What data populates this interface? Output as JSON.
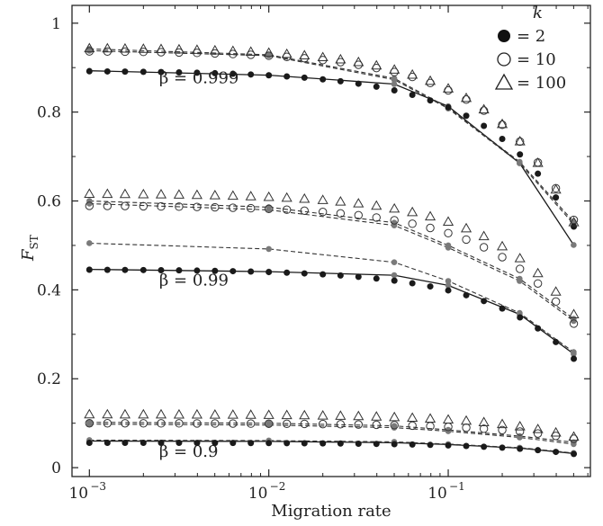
{
  "chart_data": {
    "type": "scatter",
    "xscale": "log",
    "xlim": [
      0.0008,
      0.62
    ],
    "ylim": [
      -0.02,
      1.04
    ],
    "xlabel": "Migration rate",
    "ylabel_main": "F",
    "ylabel_sub": "ST",
    "x_ticks": [
      {
        "value": 0.001,
        "base": "10",
        "exp": "−3"
      },
      {
        "value": 0.01,
        "base": "10",
        "exp": "−2"
      },
      {
        "value": 0.1,
        "base": "10",
        "exp": "−1"
      }
    ],
    "y_ticks": [
      {
        "value": 0,
        "label": "0"
      },
      {
        "value": 0.2,
        "label": "0.2"
      },
      {
        "value": 0.4,
        "label": "0.4"
      },
      {
        "value": 0.6,
        "label": "0.6"
      },
      {
        "value": 0.8,
        "label": "0.8"
      },
      {
        "value": 1.0,
        "label": "1"
      }
    ],
    "legend": {
      "title": "k",
      "position": "top-right",
      "entries": [
        {
          "marker": "filled-circle",
          "label": "= 2"
        },
        {
          "marker": "open-circle",
          "label": "= 10"
        },
        {
          "marker": "open-triangle",
          "label": "= 100"
        }
      ]
    },
    "x_sim": [
      0.001,
      0.00126,
      0.00158,
      0.002,
      0.00251,
      0.00316,
      0.00398,
      0.00501,
      0.00631,
      0.00794,
      0.01,
      0.0126,
      0.0158,
      0.02,
      0.0251,
      0.0316,
      0.0398,
      0.0501,
      0.0631,
      0.0794,
      0.1,
      0.126,
      0.158,
      0.2,
      0.251,
      0.316,
      0.398,
      0.501
    ],
    "x_anchor": [
      0.001,
      0.01,
      0.05,
      0.1,
      0.25,
      0.5
    ],
    "groups": [
      {
        "label": "β = 0.999",
        "label_at": [
          0.00245,
          0.865
        ],
        "series": [
          {
            "k": "2",
            "marker": "filled-circle",
            "y0": 0.893,
            "a": 0.392
          },
          {
            "k": "10",
            "marker": "open-circle",
            "y0": 0.938,
            "a": 0.405
          },
          {
            "k": "100",
            "marker": "open-triangle",
            "y0": 0.945,
            "a": 0.415
          }
        ],
        "theory": [
          {
            "k": "2",
            "style": "solid",
            "y": [
              0.893,
              0.883,
              0.863,
              0.813,
              0.685,
              0.501
            ]
          },
          {
            "k": "10",
            "style": "dashed",
            "y": [
              0.938,
              0.927,
              0.873,
              0.808,
              0.685,
              0.548
            ]
          },
          {
            "k": "100",
            "style": "dashed",
            "y": [
              0.942,
              0.929,
              0.876,
              0.81,
              0.688,
              0.553
            ]
          }
        ]
      },
      {
        "label": "β = 0.99",
        "label_at": [
          0.00245,
          0.41
        ],
        "series": [
          {
            "k": "2",
            "marker": "filled-circle",
            "y0": 0.446,
            "a": 0.45
          },
          {
            "k": "10",
            "marker": "open-circle",
            "y0": 0.59,
            "a": 0.45
          },
          {
            "k": "100",
            "marker": "open-triangle",
            "y0": 0.617,
            "a": 0.44
          }
        ],
        "theory": [
          {
            "k": "2",
            "style": "solid",
            "y": [
              0.446,
              0.441,
              0.433,
              0.41,
              0.345,
              0.256
            ]
          },
          {
            "k": "10",
            "style": "dashed",
            "y": [
              0.505,
              0.492,
              0.462,
              0.42,
              0.348,
              0.26
            ]
          },
          {
            "k": "10",
            "style": "dashed",
            "y": [
              0.594,
              0.58,
              0.545,
              0.495,
              0.42,
              0.33
            ]
          },
          {
            "k": "100",
            "style": "dashed",
            "y": [
              0.6,
              0.586,
              0.551,
              0.5,
              0.425,
              0.335
            ]
          }
        ]
      },
      {
        "label": "β = 0.9",
        "label_at": [
          0.00245,
          0.025
        ],
        "series": [
          {
            "k": "2",
            "marker": "filled-circle",
            "y0": 0.056,
            "a": 0.45
          },
          {
            "k": "10",
            "marker": "open-circle",
            "y0": 0.1,
            "a": 0.35
          },
          {
            "k": "100",
            "marker": "open-triangle",
            "y0": 0.12,
            "a": 0.42
          }
        ],
        "theory": [
          {
            "k": "2",
            "style": "solid",
            "y": [
              0.06,
              0.059,
              0.056,
              0.052,
              0.044,
              0.032
            ]
          },
          {
            "k": "10",
            "style": "dashed",
            "y": [
              0.062,
              0.061,
              0.058,
              0.053,
              0.045,
              0.033
            ]
          },
          {
            "k": "10",
            "style": "dashed",
            "y": [
              0.098,
              0.096,
              0.09,
              0.082,
              0.068,
              0.053
            ]
          },
          {
            "k": "100",
            "style": "dashed",
            "y": [
              0.102,
              0.1,
              0.094,
              0.085,
              0.071,
              0.057
            ]
          }
        ]
      }
    ]
  }
}
